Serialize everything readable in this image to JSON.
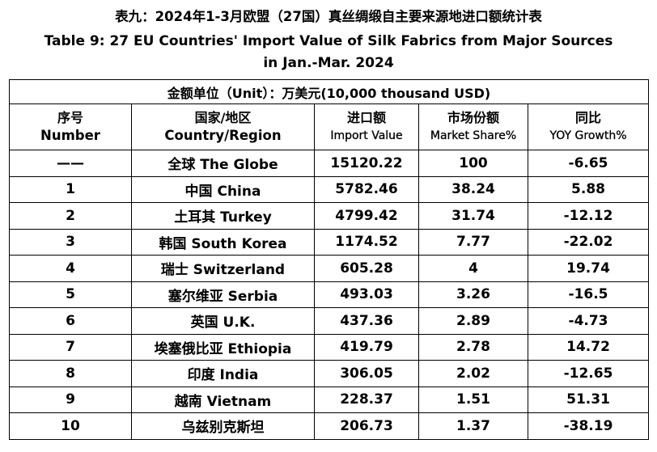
{
  "title": {
    "cn": "表九：2024年1-3月欧盟（27国）真丝绸缎自主要来源地进口额统计表",
    "en_line1": "Table 9: 27 EU Countries' Import Value of Silk Fabrics from Major Sources",
    "en_line2": "in Jan.-Mar. 2024"
  },
  "unit": "金额单位（Unit）：万美元(10,000 thousand USD)",
  "headers": {
    "number": {
      "cn": "序号",
      "en": "Number"
    },
    "country": {
      "cn": "国家/地区",
      "en": "Country/Region"
    },
    "import_value": {
      "cn": "进口额",
      "en": "Import Value"
    },
    "market_share": {
      "cn": "市场份额",
      "en": "Market Share%"
    },
    "growth": {
      "cn": "同比",
      "en": "YOY Growth%"
    }
  },
  "rows": [
    {
      "number": "——",
      "country": "全球 The Globe",
      "import_value": "15120.22",
      "market_share": "100",
      "growth": "-6.65"
    },
    {
      "number": "1",
      "country": "中国 China",
      "import_value": "5782.46",
      "market_share": "38.24",
      "growth": "5.88"
    },
    {
      "number": "2",
      "country": "土耳其 Turkey",
      "import_value": "4799.42",
      "market_share": "31.74",
      "growth": "-12.12"
    },
    {
      "number": "3",
      "country": "韩国 South Korea",
      "import_value": "1174.52",
      "market_share": "7.77",
      "growth": "-22.02"
    },
    {
      "number": "4",
      "country": "瑞士 Switzerland",
      "import_value": "605.28",
      "market_share": "4",
      "growth": "19.74"
    },
    {
      "number": "5",
      "country": "塞尔维亚 Serbia",
      "import_value": "493.03",
      "market_share": "3.26",
      "growth": "-16.5"
    },
    {
      "number": "6",
      "country": "英国 U.K.",
      "import_value": "437.36",
      "market_share": "2.89",
      "growth": "-4.73"
    },
    {
      "number": "7",
      "country": "埃塞俄比亚 Ethiopia",
      "import_value": "419.79",
      "market_share": "2.78",
      "growth": "14.72"
    },
    {
      "number": "8",
      "country": "印度 India",
      "import_value": "306.05",
      "market_share": "2.02",
      "growth": "-12.65"
    },
    {
      "number": "9",
      "country": "越南 Vietnam",
      "import_value": "228.37",
      "market_share": "1.51",
      "growth": "51.31"
    },
    {
      "number": "10",
      "country": "乌兹别克斯坦",
      "import_value": "206.73",
      "market_share": "1.37",
      "growth": "-38.19"
    }
  ]
}
